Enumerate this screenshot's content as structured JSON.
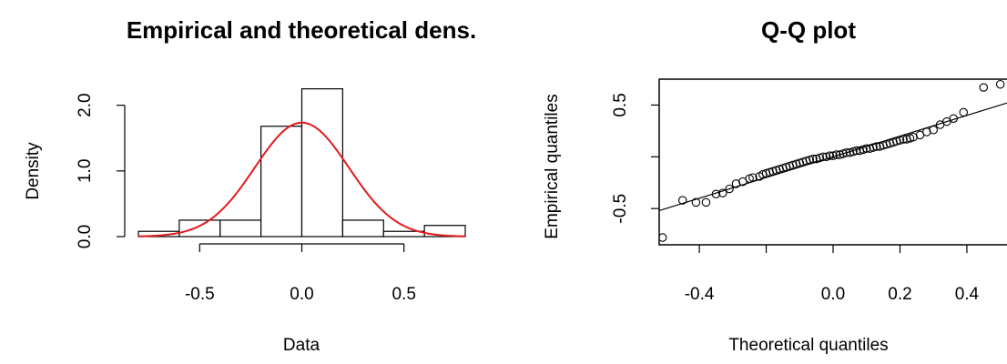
{
  "chart_data": [
    {
      "type": "bar",
      "title": "Empirical and theoretical dens.",
      "xlabel": "Data",
      "ylabel": "Density",
      "xlim": [
        -0.8,
        0.8
      ],
      "ylim": [
        0,
        2.3
      ],
      "x_ticks": [
        -0.5,
        0.0,
        0.5
      ],
      "x_tick_labels": [
        "-0.5",
        "0.0",
        "0.5"
      ],
      "y_ticks": [
        0.0,
        1.0,
        2.0
      ],
      "y_tick_labels": [
        "0.0",
        "1.0",
        "2.0"
      ],
      "bins": [
        {
          "x0": -0.8,
          "x1": -0.6,
          "density": 0.08
        },
        {
          "x0": -0.6,
          "x1": -0.4,
          "density": 0.25
        },
        {
          "x0": -0.4,
          "x1": -0.2,
          "density": 0.25
        },
        {
          "x0": -0.2,
          "x1": 0.0,
          "density": 1.68
        },
        {
          "x0": 0.0,
          "x1": 0.2,
          "density": 2.25
        },
        {
          "x0": 0.2,
          "x1": 0.4,
          "density": 0.25
        },
        {
          "x0": 0.4,
          "x1": 0.6,
          "density": 0.08
        },
        {
          "x0": 0.6,
          "x1": 0.8,
          "density": 0.17
        }
      ],
      "density_curve": {
        "type": "normal",
        "mean": 0.0,
        "sd": 0.23,
        "color": "#e31a1c"
      }
    },
    {
      "type": "scatter",
      "title": "Q-Q plot",
      "xlabel": "Theoretical quantiles",
      "ylabel": "Empirical quantiles",
      "xlim": [
        -0.52,
        0.52
      ],
      "ylim": [
        -0.85,
        0.75
      ],
      "x_ticks": [
        -0.4,
        -0.2,
        0.0,
        0.2,
        0.4
      ],
      "x_tick_labels": [
        "-0.4",
        "",
        "0.0",
        "0.2",
        "0.4"
      ],
      "y_ticks": [
        -0.5,
        0.0,
        0.5
      ],
      "y_tick_labels": [
        "-0.5",
        "",
        "0.5"
      ],
      "reference_line": {
        "slope": 1.0,
        "intercept": 0.0
      },
      "points": [
        [
          -0.51,
          -0.78
        ],
        [
          -0.45,
          -0.42
        ],
        [
          -0.41,
          -0.44
        ],
        [
          -0.38,
          -0.44
        ],
        [
          -0.35,
          -0.36
        ],
        [
          -0.33,
          -0.35
        ],
        [
          -0.31,
          -0.31
        ],
        [
          -0.29,
          -0.26
        ],
        [
          -0.27,
          -0.24
        ],
        [
          -0.25,
          -0.21
        ],
        [
          -0.24,
          -0.2
        ],
        [
          -0.22,
          -0.19
        ],
        [
          -0.21,
          -0.17
        ],
        [
          -0.2,
          -0.16
        ],
        [
          -0.19,
          -0.15
        ],
        [
          -0.18,
          -0.14
        ],
        [
          -0.17,
          -0.13
        ],
        [
          -0.16,
          -0.12
        ],
        [
          -0.15,
          -0.11
        ],
        [
          -0.14,
          -0.1
        ],
        [
          -0.13,
          -0.09
        ],
        [
          -0.12,
          -0.08
        ],
        [
          -0.11,
          -0.07
        ],
        [
          -0.1,
          -0.06
        ],
        [
          -0.09,
          -0.05
        ],
        [
          -0.08,
          -0.04
        ],
        [
          -0.07,
          -0.03
        ],
        [
          -0.06,
          -0.02
        ],
        [
          -0.05,
          -0.02
        ],
        [
          -0.04,
          -0.01
        ],
        [
          -0.03,
          0.0
        ],
        [
          -0.02,
          0.0
        ],
        [
          -0.01,
          0.01
        ],
        [
          0.0,
          0.01
        ],
        [
          0.01,
          0.02
        ],
        [
          0.02,
          0.02
        ],
        [
          0.03,
          0.03
        ],
        [
          0.04,
          0.04
        ],
        [
          0.05,
          0.04
        ],
        [
          0.06,
          0.05
        ],
        [
          0.07,
          0.06
        ],
        [
          0.08,
          0.06
        ],
        [
          0.09,
          0.07
        ],
        [
          0.1,
          0.08
        ],
        [
          0.11,
          0.08
        ],
        [
          0.12,
          0.09
        ],
        [
          0.13,
          0.1
        ],
        [
          0.14,
          0.1
        ],
        [
          0.15,
          0.11
        ],
        [
          0.16,
          0.12
        ],
        [
          0.17,
          0.13
        ],
        [
          0.18,
          0.14
        ],
        [
          0.19,
          0.15
        ],
        [
          0.2,
          0.16
        ],
        [
          0.21,
          0.17
        ],
        [
          0.22,
          0.17
        ],
        [
          0.23,
          0.18
        ],
        [
          0.24,
          0.19
        ],
        [
          0.26,
          0.21
        ],
        [
          0.28,
          0.24
        ],
        [
          0.3,
          0.26
        ],
        [
          0.32,
          0.31
        ],
        [
          0.34,
          0.34
        ],
        [
          0.36,
          0.37
        ],
        [
          0.39,
          0.43
        ],
        [
          0.45,
          0.67
        ],
        [
          0.5,
          0.7
        ]
      ]
    }
  ]
}
